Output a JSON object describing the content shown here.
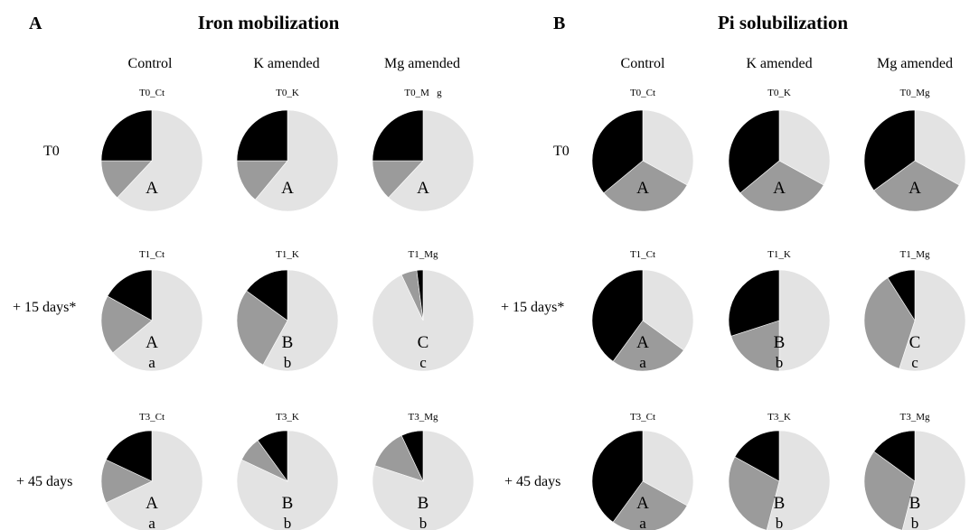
{
  "panels": [
    {
      "letter": "A",
      "title": "Iron mobilization",
      "columns": [
        "Control",
        "K amended",
        "Mg amended"
      ],
      "rows": [
        "T0",
        "+ 15 days*",
        "+ 45 days"
      ],
      "pies": [
        [
          {
            "label": "T0_Ct",
            "slices": [
              0.62,
              0.13,
              0.25
            ],
            "upper": "A",
            "lower": ""
          },
          {
            "label": "T0_K",
            "slices": [
              0.61,
              0.14,
              0.25
            ],
            "upper": "A",
            "lower": ""
          },
          {
            "label": "T0_M   g",
            "slices": [
              0.62,
              0.13,
              0.25
            ],
            "upper": "A",
            "lower": ""
          }
        ],
        [
          {
            "label": "T1_Ct",
            "slices": [
              0.64,
              0.19,
              0.17
            ],
            "upper": "A",
            "lower": "a"
          },
          {
            "label": "T1_K",
            "slices": [
              0.58,
              0.27,
              0.15
            ],
            "upper": "B",
            "lower": "b"
          },
          {
            "label": "T1_Mg",
            "slices": [
              0.93,
              0.05,
              0.02
            ],
            "upper": "C",
            "lower": "c"
          }
        ],
        [
          {
            "label": "T3_Ct",
            "slices": [
              0.68,
              0.14,
              0.18
            ],
            "upper": "A",
            "lower": "a"
          },
          {
            "label": "T3_K",
            "slices": [
              0.82,
              0.08,
              0.1
            ],
            "upper": "B",
            "lower": "b"
          },
          {
            "label": "T3_Mg",
            "slices": [
              0.8,
              0.13,
              0.07
            ],
            "upper": "B",
            "lower": "b"
          }
        ]
      ]
    },
    {
      "letter": "B",
      "title": "Pi solubilization",
      "columns": [
        "Control",
        "K amended",
        "Mg amended"
      ],
      "rows": [
        "T0",
        "+ 15 days*",
        "+ 45 days"
      ],
      "pies": [
        [
          {
            "label": "T0_Ct",
            "slices": [
              0.33,
              0.31,
              0.36
            ],
            "upper": "A",
            "lower": ""
          },
          {
            "label": "T0_K",
            "slices": [
              0.33,
              0.31,
              0.36
            ],
            "upper": "A",
            "lower": ""
          },
          {
            "label": "T0_Mg",
            "slices": [
              0.33,
              0.32,
              0.35
            ],
            "upper": "A",
            "lower": ""
          }
        ],
        [
          {
            "label": "T1_Ct",
            "slices": [
              0.35,
              0.25,
              0.4
            ],
            "upper": "A",
            "lower": "a"
          },
          {
            "label": "T1_K",
            "slices": [
              0.5,
              0.2,
              0.3
            ],
            "upper": "B",
            "lower": "b"
          },
          {
            "label": "T1_Mg",
            "slices": [
              0.55,
              0.36,
              0.09
            ],
            "upper": "C",
            "lower": "c"
          }
        ],
        [
          {
            "label": "T3_Ct",
            "slices": [
              0.33,
              0.27,
              0.4
            ],
            "upper": "A",
            "lower": "a"
          },
          {
            "label": "T3_K",
            "slices": [
              0.54,
              0.29,
              0.17
            ],
            "upper": "B",
            "lower": "b"
          },
          {
            "label": "T3_Mg",
            "slices": [
              0.54,
              0.31,
              0.15
            ],
            "upper": "B",
            "lower": "b"
          }
        ]
      ]
    }
  ],
  "chart_data": {
    "type": "pie",
    "slice_colors": [
      "#e3e3e3",
      "#9b9b9b",
      "#000000"
    ],
    "note_order": "slices listed clockwise from 12 o'clock: light, grey, black (fractions summing to 1)"
  }
}
